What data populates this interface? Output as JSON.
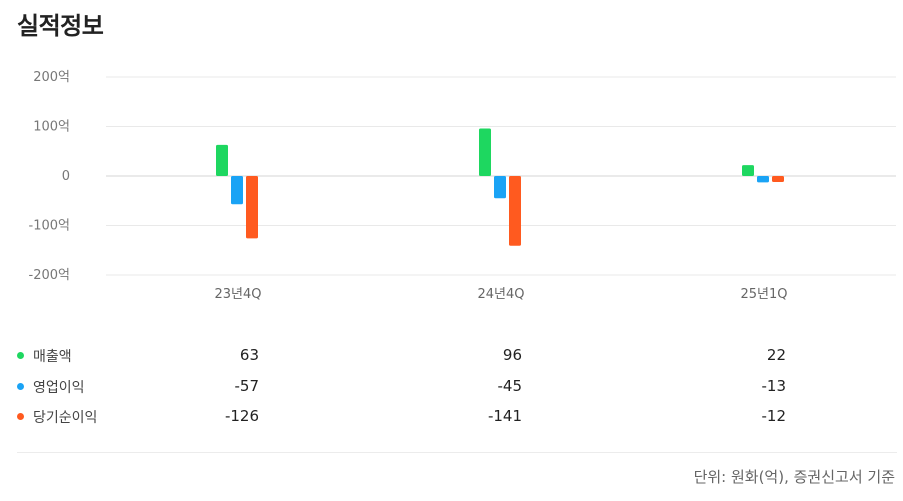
{
  "title": "실적정보",
  "footnote": "단위: 원화(억), 증권신고서 기준",
  "chart_data": {
    "type": "bar",
    "categories": [
      "23년4Q",
      "24년4Q",
      "25년1Q"
    ],
    "series": [
      {
        "name": "매출액",
        "color": "#1ed760",
        "values": [
          63,
          96,
          22
        ]
      },
      {
        "name": "영업이익",
        "color": "#1aa3f5",
        "values": [
          -57,
          -45,
          -13
        ]
      },
      {
        "name": "당기순이익",
        "color": "#ff5a1f",
        "values": [
          -126,
          -141,
          -12
        ]
      }
    ],
    "yticks": [
      "200억",
      "100억",
      "0",
      "-100억",
      "-200억"
    ],
    "ylim": [
      -200,
      200
    ],
    "grid": true,
    "legend": "bottom-table"
  }
}
